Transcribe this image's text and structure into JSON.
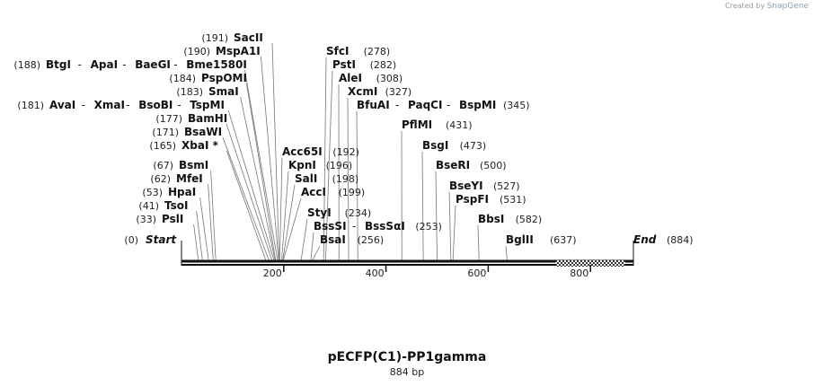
{
  "credit": {
    "prefix": "Created by",
    "brand": "SnapGene"
  },
  "title": "pECFP(C1)-PP1gamma",
  "subtitle": "884 bp",
  "chart_data": {
    "type": "restriction-map",
    "length": 884,
    "ticks": [
      200,
      400,
      600,
      800
    ],
    "start_label": "Start",
    "start_pos": "(0)",
    "end_label": "End",
    "end_pos": "(884)",
    "left_labels": [
      {
        "pos": 191,
        "pos_text": "(191)",
        "names": [
          "SacII"
        ]
      },
      {
        "pos": 190,
        "pos_text": "(190)",
        "names": [
          "MspA1I"
        ]
      },
      {
        "pos": 188,
        "pos_text": "(188)",
        "names": [
          "BtgI",
          "ApaI",
          "BaeGI",
          "Bme1580I"
        ]
      },
      {
        "pos": 184,
        "pos_text": "(184)",
        "names": [
          "PspOMI"
        ]
      },
      {
        "pos": 183,
        "pos_text": "(183)",
        "names": [
          "SmaI"
        ]
      },
      {
        "pos": 181,
        "pos_text": "(181)",
        "names": [
          "AvaI",
          "XmaI",
          "BsoBI",
          "TspMI"
        ]
      },
      {
        "pos": 177,
        "pos_text": "(177)",
        "names": [
          "BamHI"
        ]
      },
      {
        "pos": 171,
        "pos_text": "(171)",
        "names": [
          "BsaWI"
        ]
      },
      {
        "pos": 165,
        "pos_text": "(165)",
        "names": [
          "XbaI *"
        ]
      },
      {
        "pos": 67,
        "pos_text": "(67)",
        "names": [
          "BsmI"
        ]
      },
      {
        "pos": 62,
        "pos_text": "(62)",
        "names": [
          "MfeI"
        ]
      },
      {
        "pos": 53,
        "pos_text": "(53)",
        "names": [
          "HpaI"
        ]
      },
      {
        "pos": 41,
        "pos_text": "(41)",
        "names": [
          "TsoI"
        ]
      },
      {
        "pos": 33,
        "pos_text": "(33)",
        "names": [
          "PslI"
        ]
      }
    ],
    "right_labels": [
      {
        "pos": 278,
        "pos_text": "(278)",
        "names": [
          "SfcI"
        ]
      },
      {
        "pos": 282,
        "pos_text": "(282)",
        "names": [
          "PstI"
        ]
      },
      {
        "pos": 308,
        "pos_text": "(308)",
        "names": [
          "AleI"
        ]
      },
      {
        "pos": 327,
        "pos_text": "(327)",
        "names": [
          "XcmI"
        ]
      },
      {
        "pos": 345,
        "pos_text": "(345)",
        "names": [
          "BfuAI",
          "PaqCI",
          "BspMI"
        ]
      },
      {
        "pos": 431,
        "pos_text": "(431)",
        "names": [
          "PflMI"
        ]
      },
      {
        "pos": 192,
        "pos_text": "(192)",
        "names": [
          "Acc65I"
        ]
      },
      {
        "pos": 196,
        "pos_text": "(196)",
        "names": [
          "KpnI"
        ]
      },
      {
        "pos": 198,
        "pos_text": "(198)",
        "names": [
          "SalI"
        ]
      },
      {
        "pos": 199,
        "pos_text": "(199)",
        "names": [
          "AccI"
        ]
      },
      {
        "pos": 234,
        "pos_text": "(234)",
        "names": [
          "StyI"
        ]
      },
      {
        "pos": 253,
        "pos_text": "(253)",
        "names": [
          "BssSI",
          "BssSαI"
        ]
      },
      {
        "pos": 256,
        "pos_text": "(256)",
        "names": [
          "BsaI"
        ]
      },
      {
        "pos": 473,
        "pos_text": "(473)",
        "names": [
          "BsgI"
        ]
      },
      {
        "pos": 500,
        "pos_text": "(500)",
        "names": [
          "BseRI"
        ]
      },
      {
        "pos": 527,
        "pos_text": "(527)",
        "names": [
          "BseYI"
        ]
      },
      {
        "pos": 531,
        "pos_text": "(531)",
        "names": [
          "PspFI"
        ]
      },
      {
        "pos": 582,
        "pos_text": "(582)",
        "names": [
          "BbsI"
        ]
      },
      {
        "pos": 637,
        "pos_text": "(637)",
        "names": [
          "BglII"
        ]
      }
    ]
  }
}
